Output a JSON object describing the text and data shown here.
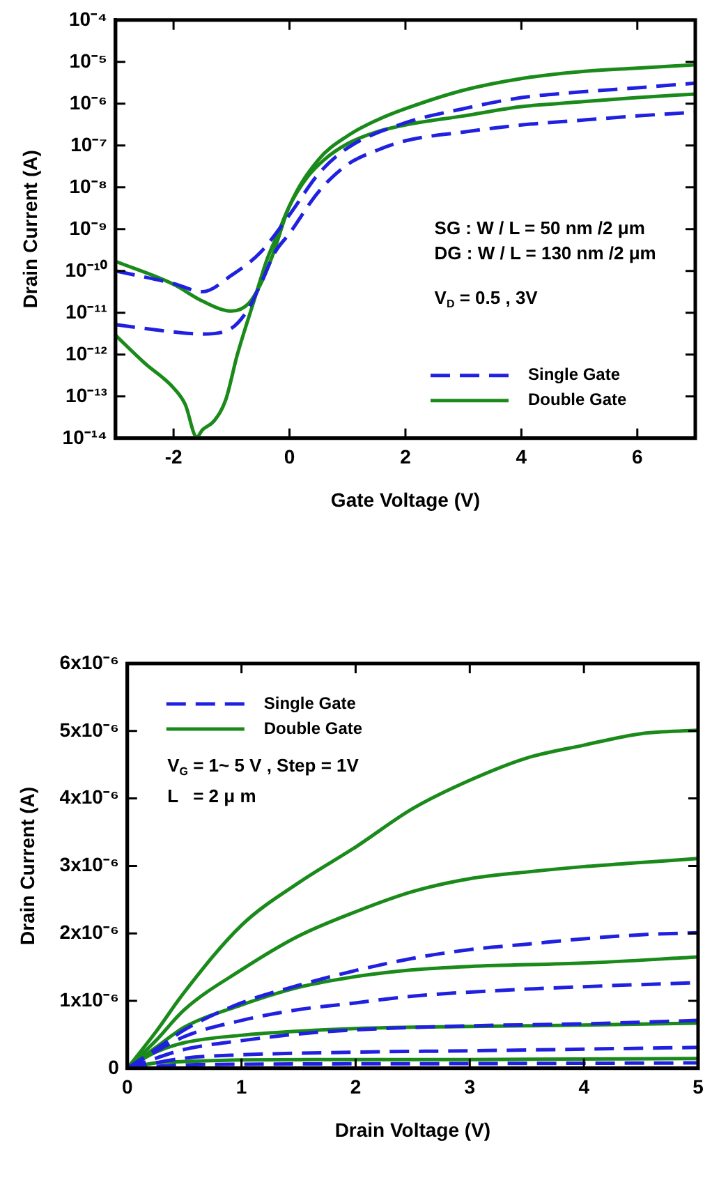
{
  "chart_data": [
    {
      "type": "line",
      "xlabel": "Gate Voltage (V)",
      "ylabel": "Drain Current (A)",
      "log": "y",
      "legend": "bottom right",
      "xlim": [
        -3,
        7
      ],
      "xticks": [
        -2,
        0,
        2,
        4,
        6
      ],
      "ylim": [
        1e-14,
        0.0001
      ],
      "yticks": [
        {
          "value": 1e-14,
          "label": "10⁻¹⁴"
        },
        {
          "value": 1e-13,
          "label": "10⁻¹³"
        },
        {
          "value": 1e-12,
          "label": "10⁻¹²"
        },
        {
          "value": 1e-11,
          "label": "10⁻¹¹"
        },
        {
          "value": 1e-10,
          "label": "10⁻¹⁰"
        },
        {
          "value": 1e-09,
          "label": "10⁻⁹"
        },
        {
          "value": 1e-08,
          "label": "10⁻⁸"
        },
        {
          "value": 1e-07,
          "label": "10⁻⁷"
        },
        {
          "value": 1e-06,
          "label": "10⁻⁶"
        },
        {
          "value": 1e-05,
          "label": "10⁻⁵"
        },
        {
          "value": 0.0001,
          "label": "10⁻⁴"
        }
      ],
      "annotations": [
        "SG : W / L = 50 nm /2 μm",
        "DG : W / L = 130 nm /2 μm",
        "V$_{D}$ = 0.5 , 3V"
      ],
      "series": [
        {
          "name": "Single Gate",
          "color": "#2020e0",
          "line_style": "dashed",
          "x": [
            -3,
            -2,
            -1.5,
            -1,
            -0.5,
            0,
            0.5,
            1,
            2,
            3,
            4,
            5,
            6,
            7
          ],
          "values": [
            1e-10,
            5e-11,
            3.2e-11,
            7.9e-11,
            2.8e-10,
            2.2e-09,
            2.1e-08,
            8.7e-08,
            3.5e-07,
            7.6e-07,
            1.4e-06,
            1.9e-06,
            2.4e-06,
            3.1e-06
          ]
        },
        {
          "color": "#2020e0",
          "line_style": "dashed",
          "x": [
            -3,
            -2,
            -1.5,
            -1,
            -0.7,
            -0.5,
            -0.25,
            0,
            0.5,
            1,
            1.5,
            2,
            3,
            4,
            5,
            6,
            7
          ],
          "values": [
            5.2e-12,
            3.5e-12,
            3.1e-12,
            4.3e-12,
            1.3e-11,
            4.8e-11,
            2.8e-10,
            7.9e-10,
            7.8e-09,
            3.5e-08,
            7.6e-08,
            1.3e-07,
            2.1e-07,
            3.1e-07,
            4e-07,
            5.1e-07,
            6.3e-07
          ]
        },
        {
          "name": "Double Gate",
          "color": "#1a8a1a",
          "line_style": "solid",
          "x": [
            -3,
            -2,
            -1.5,
            -1,
            -0.7,
            -0.5,
            -0.3,
            0,
            0.5,
            1,
            1.5,
            2,
            3,
            4,
            5,
            6,
            7
          ],
          "values": [
            1.7e-10,
            4.8e-11,
            1.9e-11,
            1.1e-11,
            1.7e-11,
            4.8e-11,
            2.2e-10,
            3.6e-09,
            4.6e-08,
            1.7e-07,
            4e-07,
            7.6e-07,
            2.1e-06,
            4e-06,
            5.8e-06,
            7.1e-06,
            8.5e-06
          ]
        },
        {
          "color": "#1a8a1a",
          "line_style": "solid",
          "x": [
            -3,
            -2.5,
            -2,
            -1.8,
            -1.6,
            -1.5,
            -1.3,
            -1.1,
            -0.9,
            -0.6,
            -0.4,
            -0.2,
            0,
            0.3,
            0.6,
            1,
            1.5,
            2,
            3,
            4,
            5,
            6,
            7
          ],
          "values": [
            2.9e-12,
            6.3e-13,
            1.6e-13,
            6.5e-14,
            1.07e-14,
            1.6e-14,
            2.6e-14,
            8.3e-14,
            1e-12,
            2.2e-11,
            1.7e-10,
            7.9e-10,
            3.6e-09,
            1.7e-08,
            4.6e-08,
            1.1e-07,
            2.1e-07,
            3.1e-07,
            5.1e-07,
            8.5e-07,
            1.1e-06,
            1.4e-06,
            1.7e-06
          ]
        }
      ]
    },
    {
      "type": "line",
      "xlabel": "Drain Voltage (V)",
      "ylabel": "Drain Current (A)",
      "legend": "top left",
      "xlim": [
        0,
        5
      ],
      "xticks": [
        0,
        1,
        2,
        3,
        4,
        5
      ],
      "ylim": [
        0,
        6e-06
      ],
      "yticks": [
        0,
        {
          "value": 1e-06,
          "label": "1x10⁻⁶"
        },
        {
          "value": 2e-06,
          "label": "2x10⁻⁶"
        },
        {
          "value": 3e-06,
          "label": "3x10⁻⁶"
        },
        {
          "value": 4e-06,
          "label": "4x10⁻⁶"
        },
        {
          "value": 5e-06,
          "label": "5x10⁻⁶"
        },
        {
          "value": 6e-06,
          "label": "6x10⁻⁶"
        }
      ],
      "annotations": [
        "V$_{G}$ = 1~ 5 V , Step = 1V",
        "L   = 2 μ m"
      ],
      "series": [
        {
          "name": "Single Gate",
          "color": "#2020e0",
          "line_style": "dashed",
          "x": [
            0,
            0.3,
            0.5,
            1,
            1.5,
            2,
            2.5,
            3,
            3.5,
            4,
            4.5,
            5
          ],
          "values": [
            0,
            3.4e-07,
            5.7e-07,
            9.7e-07,
            1.23e-06,
            1.45e-06,
            1.63e-06,
            1.76e-06,
            1.84e-06,
            1.92e-06,
            1.98e-06,
            2.01e-06
          ]
        },
        {
          "color": "#2020e0",
          "line_style": "dashed",
          "x": [
            0,
            0.5,
            1,
            1.5,
            2,
            2.5,
            3,
            4,
            5
          ],
          "values": [
            0,
            4.7e-07,
            7.1e-07,
            8.7e-07,
            9.7e-07,
            1.07e-06,
            1.13e-06,
            1.21e-06,
            1.27e-06
          ]
        },
        {
          "color": "#2020e0",
          "line_style": "dashed",
          "x": [
            0,
            0.5,
            1,
            1.5,
            2,
            3,
            4,
            5
          ],
          "values": [
            0,
            2.8e-07,
            4.1e-07,
            5.1e-07,
            5.7e-07,
            6.3e-07,
            6.6e-07,
            7.1e-07
          ]
        },
        {
          "color": "#2020e0",
          "line_style": "dashed",
          "x": [
            0,
            0.5,
            1,
            2,
            3,
            5
          ],
          "values": [
            0,
            1.5e-07,
            2e-07,
            2.4e-07,
            2.6e-07,
            3.1e-07
          ]
        },
        {
          "color": "#2020e0",
          "line_style": "dashed",
          "x": [
            0,
            0.5,
            1,
            3,
            5
          ],
          "values": [
            0,
            5e-08,
            6e-08,
            7e-08,
            8e-08
          ]
        },
        {
          "name": "Double Gate",
          "color": "#1a8a1a",
          "line_style": "solid",
          "x": [
            0,
            0.25,
            0.5,
            1,
            1.5,
            2,
            2.5,
            3,
            3.5,
            4,
            4.5,
            5
          ],
          "values": [
            0,
            5.4e-07,
            1.13e-06,
            2.12e-06,
            2.75e-06,
            3.28e-06,
            3.85e-06,
            4.27e-06,
            4.6e-06,
            4.79e-06,
            4.96e-06,
            5.01e-06
          ]
        },
        {
          "color": "#1a8a1a",
          "line_style": "solid",
          "x": [
            0,
            0.25,
            0.5,
            1,
            1.5,
            2,
            2.5,
            3,
            3.5,
            4,
            4.5,
            5
          ],
          "values": [
            0,
            4.1e-07,
            8.7e-07,
            1.46e-06,
            1.96e-06,
            2.32e-06,
            2.62e-06,
            2.81e-06,
            2.91e-06,
            2.99e-06,
            3.05e-06,
            3.11e-06
          ]
        },
        {
          "color": "#1a8a1a",
          "line_style": "solid",
          "x": [
            0,
            0.25,
            0.5,
            1,
            1.5,
            2,
            2.5,
            3,
            4,
            5
          ],
          "values": [
            0,
            3.1e-07,
            6.1e-07,
            9.4e-07,
            1.2e-06,
            1.36e-06,
            1.46e-06,
            1.51e-06,
            1.56e-06,
            1.65e-06
          ]
        },
        {
          "color": "#1a8a1a",
          "line_style": "solid",
          "x": [
            0,
            0.25,
            0.5,
            1,
            1.5,
            2,
            3,
            4,
            5
          ],
          "values": [
            0,
            2.4e-07,
            3.8e-07,
            4.9e-07,
            5.5e-07,
            5.9e-07,
            6.2e-07,
            6.4e-07,
            6.7e-07
          ]
        },
        {
          "color": "#1a8a1a",
          "line_style": "solid",
          "x": [
            0,
            0.25,
            0.5,
            1,
            2,
            3,
            5
          ],
          "values": [
            0,
            8e-08,
            1e-07,
            1.25e-07,
            1.3e-07,
            1.3e-07,
            1.45e-07
          ]
        }
      ]
    }
  ]
}
